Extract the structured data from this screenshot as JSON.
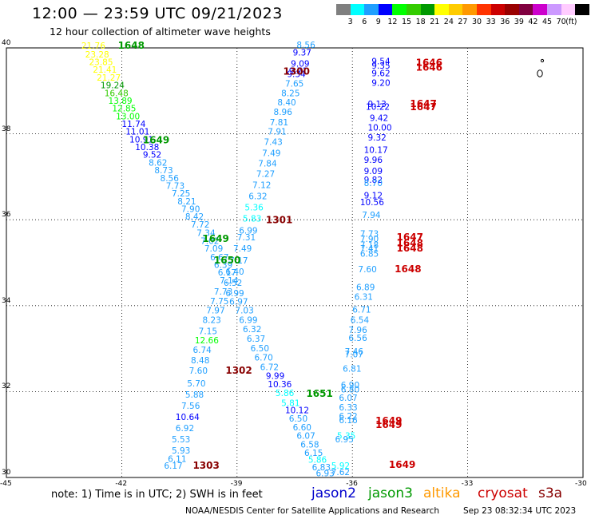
{
  "header": {
    "title": "12:00 — 23:59 UTC 09/21/2023",
    "subtitle": "12 hour collection of altimeter wave heights"
  },
  "colorbar": {
    "colors": [
      "#7f7f7f",
      "#00ffff",
      "#1f9fff",
      "#0000ff",
      "#00ff00",
      "#33cc00",
      "#009900",
      "#ffff00",
      "#ffcc00",
      "#ff9900",
      "#ff3300",
      "#cc0000",
      "#990000",
      "#800040",
      "#cc00cc",
      "#cc99ff",
      "#ffccff",
      "#000000"
    ],
    "labels": [
      "3",
      "6",
      "9",
      "12",
      "15",
      "18",
      "21",
      "24",
      "27",
      "30",
      "33",
      "36",
      "39",
      "42",
      "45",
      "70",
      "(ft)"
    ]
  },
  "axes": {
    "x_ticks": [
      "-45",
      "-42",
      "-39",
      "-36",
      "-33",
      "-30"
    ],
    "y_ticks": [
      "40",
      "38",
      "36",
      "34",
      "32",
      "30"
    ]
  },
  "legend": {
    "note": "note:  1) Time is in UTC;  2) SWH is in feet",
    "satellites": [
      {
        "name": "jason2",
        "color": "#0000cc"
      },
      {
        "name": "jason3",
        "color": "#009900"
      },
      {
        "name": "altika",
        "color": "#ff9900"
      },
      {
        "name": "cryosat",
        "color": "#cc0000"
      },
      {
        "name": "s3a",
        "color": "#880000"
      }
    ]
  },
  "footer": {
    "source": "NOAA/NESDIS Center for Satellite Applications and Research",
    "timestamp": "Sep 23 08:32:34 UTC 2023"
  },
  "time_labels": [
    {
      "text": "1648",
      "lon": -42.1,
      "lat": 39.98,
      "color": "#009900"
    },
    {
      "text": "1649",
      "lon": -41.45,
      "lat": 37.78,
      "color": "#009900"
    },
    {
      "text": "1649",
      "lon": -39.9,
      "lat": 35.48,
      "color": "#009900"
    },
    {
      "text": "1650",
      "lon": -39.6,
      "lat": 34.98,
      "color": "#009900"
    },
    {
      "text": "1651",
      "lon": -37.2,
      "lat": 31.88,
      "color": "#009900"
    },
    {
      "text": "1300",
      "lon": -37.8,
      "lat": 39.38,
      "color": "#880000"
    },
    {
      "text": "1301",
      "lon": -38.25,
      "lat": 35.92,
      "color": "#880000"
    },
    {
      "text": "1302",
      "lon": -39.3,
      "lat": 32.42,
      "color": "#880000"
    },
    {
      "text": "1303",
      "lon": -40.15,
      "lat": 30.2,
      "color": "#880000"
    },
    {
      "text": "1646",
      "lon": -34.35,
      "lat": 39.58,
      "color": "#cc0000"
    },
    {
      "text": "1646",
      "lon": -34.35,
      "lat": 39.47,
      "color": "#cc0000"
    },
    {
      "text": "1647",
      "lon": -34.5,
      "lat": 38.62,
      "color": "#cc0000"
    },
    {
      "text": "1647",
      "lon": -34.5,
      "lat": 38.55,
      "color": "#cc0000"
    },
    {
      "text": "1647",
      "lon": -34.85,
      "lat": 35.52,
      "color": "#cc0000"
    },
    {
      "text": "1648",
      "lon": -34.85,
      "lat": 35.38,
      "color": "#cc0000"
    },
    {
      "text": "1648",
      "lon": -34.85,
      "lat": 35.26,
      "color": "#cc0000"
    },
    {
      "text": "1648",
      "lon": -34.9,
      "lat": 34.78,
      "color": "#cc0000"
    },
    {
      "text": "1649",
      "lon": -35.4,
      "lat": 31.25,
      "color": "#cc0000"
    },
    {
      "text": "1649",
      "lon": -35.4,
      "lat": 31.15,
      "color": "#cc0000"
    },
    {
      "text": "1649",
      "lon": -35.05,
      "lat": 30.22,
      "color": "#cc0000"
    }
  ],
  "swh_labels": [
    {
      "text": "21.76",
      "lon": -43.05,
      "lat": 39.98,
      "color": "#ffff00"
    },
    {
      "text": "23.28",
      "lon": -42.95,
      "lat": 39.78,
      "color": "#ffff00"
    },
    {
      "text": "23.85",
      "lon": -42.85,
      "lat": 39.6,
      "color": "#ffff00"
    },
    {
      "text": "21.41",
      "lon": -42.75,
      "lat": 39.42,
      "color": "#ffff00"
    },
    {
      "text": "21.27",
      "lon": -42.65,
      "lat": 39.24,
      "color": "#ffff00"
    },
    {
      "text": "19.24",
      "lon": -42.55,
      "lat": 39.06,
      "color": "#009900"
    },
    {
      "text": "16.48",
      "lon": -42.45,
      "lat": 38.88,
      "color": "#33cc00"
    },
    {
      "text": "13.89",
      "lon": -42.35,
      "lat": 38.7,
      "color": "#00ff00"
    },
    {
      "text": "12.85",
      "lon": -42.25,
      "lat": 38.52,
      "color": "#00ff00"
    },
    {
      "text": "13.00",
      "lon": -42.15,
      "lat": 38.34,
      "color": "#00ff00"
    },
    {
      "text": "11.74",
      "lon": -42.0,
      "lat": 38.16,
      "color": "#0000ff"
    },
    {
      "text": "11.01",
      "lon": -41.9,
      "lat": 37.98,
      "color": "#0000ff"
    },
    {
      "text": "10.91",
      "lon": -41.8,
      "lat": 37.8,
      "color": "#0000ff"
    },
    {
      "text": "10.38",
      "lon": -41.65,
      "lat": 37.62,
      "color": "#0000ff"
    },
    {
      "text": "9.52",
      "lon": -41.45,
      "lat": 37.44,
      "color": "#0000ff"
    },
    {
      "text": "8.62",
      "lon": -41.3,
      "lat": 37.26,
      "color": "#1f9fff"
    },
    {
      "text": "8.73",
      "lon": -41.15,
      "lat": 37.08,
      "color": "#1f9fff"
    },
    {
      "text": "8.56",
      "lon": -41.0,
      "lat": 36.9,
      "color": "#1f9fff"
    },
    {
      "text": "7.73",
      "lon": -40.85,
      "lat": 36.72,
      "color": "#1f9fff"
    },
    {
      "text": "7.25",
      "lon": -40.7,
      "lat": 36.54,
      "color": "#1f9fff"
    },
    {
      "text": "8.21",
      "lon": -40.55,
      "lat": 36.36,
      "color": "#1f9fff"
    },
    {
      "text": "7.90",
      "lon": -40.45,
      "lat": 36.18,
      "color": "#1f9fff"
    },
    {
      "text": "8.42",
      "lon": -40.35,
      "lat": 36.0,
      "color": "#1f9fff"
    },
    {
      "text": "7.72",
      "lon": -40.2,
      "lat": 35.82,
      "color": "#1f9fff"
    },
    {
      "text": "7.34",
      "lon": -40.05,
      "lat": 35.62,
      "color": "#1f9fff"
    },
    {
      "text": "7.02",
      "lon": -39.95,
      "lat": 35.44,
      "color": "#1f9fff"
    },
    {
      "text": "7.09",
      "lon": -39.85,
      "lat": 35.26,
      "color": "#1f9fff"
    },
    {
      "text": "6.67",
      "lon": -39.7,
      "lat": 35.06,
      "color": "#1f9fff"
    },
    {
      "text": "6.39",
      "lon": -39.6,
      "lat": 34.88,
      "color": "#1f9fff"
    },
    {
      "text": "6.17",
      "lon": -39.5,
      "lat": 34.7,
      "color": "#1f9fff"
    },
    {
      "text": "7.14",
      "lon": -39.45,
      "lat": 34.52,
      "color": "#1f9fff"
    },
    {
      "text": "7.73",
      "lon": -39.6,
      "lat": 34.26,
      "color": "#1f9fff"
    },
    {
      "text": "7.75",
      "lon": -39.7,
      "lat": 34.03,
      "color": "#1f9fff"
    },
    {
      "text": "7.97",
      "lon": -39.8,
      "lat": 33.82,
      "color": "#1f9fff"
    },
    {
      "text": "8.23",
      "lon": -39.9,
      "lat": 33.6,
      "color": "#1f9fff"
    },
    {
      "text": "7.15",
      "lon": -40.0,
      "lat": 33.34,
      "color": "#1f9fff"
    },
    {
      "text": "12.66",
      "lon": -40.1,
      "lat": 33.12,
      "color": "#00ff00"
    },
    {
      "text": "6.74",
      "lon": -40.15,
      "lat": 32.9,
      "color": "#1f9fff"
    },
    {
      "text": "8.48",
      "lon": -40.2,
      "lat": 32.66,
      "color": "#1f9fff"
    },
    {
      "text": "7.60",
      "lon": -40.25,
      "lat": 32.42,
      "color": "#1f9fff"
    },
    {
      "text": "5.70",
      "lon": -40.3,
      "lat": 32.12,
      "color": "#1f9fff"
    },
    {
      "text": "5.88",
      "lon": -40.35,
      "lat": 31.86,
      "color": "#1f9fff"
    },
    {
      "text": "7.56",
      "lon": -40.45,
      "lat": 31.6,
      "color": "#1f9fff"
    },
    {
      "text": "10.64",
      "lon": -40.6,
      "lat": 31.34,
      "color": "#0000ff"
    },
    {
      "text": "6.92",
      "lon": -40.6,
      "lat": 31.08,
      "color": "#1f9fff"
    },
    {
      "text": "5.53",
      "lon": -40.7,
      "lat": 30.82,
      "color": "#1f9fff"
    },
    {
      "text": "5.93",
      "lon": -40.7,
      "lat": 30.56,
      "color": "#1f9fff"
    },
    {
      "text": "6.11",
      "lon": -40.8,
      "lat": 30.36,
      "color": "#1f9fff"
    },
    {
      "text": "6.17",
      "lon": -40.9,
      "lat": 30.2,
      "color": "#1f9fff"
    },
    {
      "text": "8.56",
      "lon": -37.45,
      "lat": 40.0,
      "color": "#1f9fff"
    },
    {
      "text": "9.37",
      "lon": -37.55,
      "lat": 39.82,
      "color": "#0000ff"
    },
    {
      "text": "9.09",
      "lon": -37.6,
      "lat": 39.56,
      "color": "#0000ff"
    },
    {
      "text": "9.71",
      "lon": -37.65,
      "lat": 39.4,
      "color": "#0000ff"
    },
    {
      "text": "9.34",
      "lon": -37.7,
      "lat": 39.32,
      "color": "#0000ff"
    },
    {
      "text": "7.65",
      "lon": -37.75,
      "lat": 39.1,
      "color": "#1f9fff"
    },
    {
      "text": "8.25",
      "lon": -37.85,
      "lat": 38.88,
      "color": "#1f9fff"
    },
    {
      "text": "8.40",
      "lon": -37.95,
      "lat": 38.66,
      "color": "#1f9fff"
    },
    {
      "text": "8.96",
      "lon": -38.05,
      "lat": 38.44,
      "color": "#1f9fff"
    },
    {
      "text": "7.81",
      "lon": -38.15,
      "lat": 38.2,
      "color": "#1f9fff"
    },
    {
      "text": "7.91",
      "lon": -38.2,
      "lat": 37.98,
      "color": "#1f9fff"
    },
    {
      "text": "7.43",
      "lon": -38.3,
      "lat": 37.74,
      "color": "#1f9fff"
    },
    {
      "text": "7.49",
      "lon": -38.35,
      "lat": 37.48,
      "color": "#1f9fff"
    },
    {
      "text": "7.84",
      "lon": -38.45,
      "lat": 37.24,
      "color": "#1f9fff"
    },
    {
      "text": "7.27",
      "lon": -38.5,
      "lat": 37.0,
      "color": "#1f9fff"
    },
    {
      "text": "7.12",
      "lon": -38.6,
      "lat": 36.74,
      "color": "#1f9fff"
    },
    {
      "text": "6.32",
      "lon": -38.7,
      "lat": 36.48,
      "color": "#1f9fff"
    },
    {
      "text": "5.36",
      "lon": -38.8,
      "lat": 36.22,
      "color": "#00ffff"
    },
    {
      "text": "5.83",
      "lon": -38.85,
      "lat": 35.96,
      "color": "#00ffff"
    },
    {
      "text": "6.99",
      "lon": -38.95,
      "lat": 35.68,
      "color": "#1f9fff"
    },
    {
      "text": "7.31",
      "lon": -39.0,
      "lat": 35.52,
      "color": "#1f9fff"
    },
    {
      "text": "7.49",
      "lon": -39.1,
      "lat": 35.26,
      "color": "#1f9fff"
    },
    {
      "text": "7.17",
      "lon": -39.2,
      "lat": 34.98,
      "color": "#1f9fff"
    },
    {
      "text": "6.40",
      "lon": -39.3,
      "lat": 34.72,
      "color": "#1f9fff"
    },
    {
      "text": "6.52",
      "lon": -39.35,
      "lat": 34.46,
      "color": "#1f9fff"
    },
    {
      "text": "6.99",
      "lon": -39.3,
      "lat": 34.22,
      "color": "#1f9fff"
    },
    {
      "text": "6.97",
      "lon": -39.2,
      "lat": 34.02,
      "color": "#1f9fff"
    },
    {
      "text": "7.03",
      "lon": -39.05,
      "lat": 33.82,
      "color": "#1f9fff"
    },
    {
      "text": "6.99",
      "lon": -38.95,
      "lat": 33.6,
      "color": "#1f9fff"
    },
    {
      "text": "6.32",
      "lon": -38.85,
      "lat": 33.38,
      "color": "#1f9fff"
    },
    {
      "text": "6.37",
      "lon": -38.75,
      "lat": 33.16,
      "color": "#1f9fff"
    },
    {
      "text": "6.50",
      "lon": -38.65,
      "lat": 32.94,
      "color": "#1f9fff"
    },
    {
      "text": "6.70",
      "lon": -38.55,
      "lat": 32.72,
      "color": "#1f9fff"
    },
    {
      "text": "6.72",
      "lon": -38.4,
      "lat": 32.5,
      "color": "#1f9fff"
    },
    {
      "text": "9.99",
      "lon": -38.25,
      "lat": 32.3,
      "color": "#0000ff"
    },
    {
      "text": "10.36",
      "lon": -38.2,
      "lat": 32.1,
      "color": "#0000ff"
    },
    {
      "text": "5.86",
      "lon": -38.0,
      "lat": 31.9,
      "color": "#00ffff"
    },
    {
      "text": "5.81",
      "lon": -37.85,
      "lat": 31.66,
      "color": "#00ffff"
    },
    {
      "text": "10.12",
      "lon": -37.75,
      "lat": 31.5,
      "color": "#0000ff"
    },
    {
      "text": "6.50",
      "lon": -37.65,
      "lat": 31.3,
      "color": "#1f9fff"
    },
    {
      "text": "6.60",
      "lon": -37.55,
      "lat": 31.1,
      "color": "#1f9fff"
    },
    {
      "text": "6.07",
      "lon": -37.45,
      "lat": 30.9,
      "color": "#1f9fff"
    },
    {
      "text": "6.58",
      "lon": -37.35,
      "lat": 30.7,
      "color": "#1f9fff"
    },
    {
      "text": "6.15",
      "lon": -37.25,
      "lat": 30.5,
      "color": "#1f9fff"
    },
    {
      "text": "5.86",
      "lon": -37.15,
      "lat": 30.34,
      "color": "#00ffff"
    },
    {
      "text": "6.83",
      "lon": -37.05,
      "lat": 30.17,
      "color": "#1f9fff"
    },
    {
      "text": "6.93",
      "lon": -36.95,
      "lat": 30.03,
      "color": "#1f9fff"
    },
    {
      "text": "9.54",
      "lon": -35.5,
      "lat": 39.62,
      "color": "#0000ff"
    },
    {
      "text": "9.35",
      "lon": -35.5,
      "lat": 39.52,
      "color": "#0000ff"
    },
    {
      "text": "9.62",
      "lon": -35.5,
      "lat": 39.34,
      "color": "#0000ff"
    },
    {
      "text": "9.20",
      "lon": -35.5,
      "lat": 39.12,
      "color": "#0000ff"
    },
    {
      "text": "9.13",
      "lon": -35.6,
      "lat": 38.62,
      "color": "#0000ff"
    },
    {
      "text": "10.22",
      "lon": -35.65,
      "lat": 38.56,
      "color": "#0000ff"
    },
    {
      "text": "9.42",
      "lon": -35.55,
      "lat": 38.3,
      "color": "#0000ff"
    },
    {
      "text": "10.00",
      "lon": -35.6,
      "lat": 38.08,
      "color": "#0000ff"
    },
    {
      "text": "9.32",
      "lon": -35.6,
      "lat": 37.84,
      "color": "#0000ff"
    },
    {
      "text": "10.17",
      "lon": -35.7,
      "lat": 37.56,
      "color": "#0000ff"
    },
    {
      "text": "9.96",
      "lon": -35.7,
      "lat": 37.32,
      "color": "#0000ff"
    },
    {
      "text": "9.09",
      "lon": -35.7,
      "lat": 37.06,
      "color": "#0000ff"
    },
    {
      "text": "9.82",
      "lon": -35.7,
      "lat": 36.86,
      "color": "#0000ff"
    },
    {
      "text": "8.70",
      "lon": -35.7,
      "lat": 36.78,
      "color": "#1f9fff"
    },
    {
      "text": "9.12",
      "lon": -35.7,
      "lat": 36.5,
      "color": "#0000ff"
    },
    {
      "text": "10.56",
      "lon": -35.8,
      "lat": 36.34,
      "color": "#0000ff"
    },
    {
      "text": "7.94",
      "lon": -35.75,
      "lat": 36.04,
      "color": "#1f9fff"
    },
    {
      "text": "7.73",
      "lon": -35.8,
      "lat": 35.6,
      "color": "#1f9fff"
    },
    {
      "text": "7.90",
      "lon": -35.8,
      "lat": 35.48,
      "color": "#1f9fff"
    },
    {
      "text": "7.18",
      "lon": -35.8,
      "lat": 35.34,
      "color": "#1f9fff"
    },
    {
      "text": "7.41",
      "lon": -35.8,
      "lat": 35.26,
      "color": "#1f9fff"
    },
    {
      "text": "6.85",
      "lon": -35.8,
      "lat": 35.14,
      "color": "#1f9fff"
    },
    {
      "text": "7.60",
      "lon": -35.85,
      "lat": 34.78,
      "color": "#1f9fff"
    },
    {
      "text": "6.89",
      "lon": -35.9,
      "lat": 34.36,
      "color": "#1f9fff"
    },
    {
      "text": "6.31",
      "lon": -35.95,
      "lat": 34.14,
      "color": "#1f9fff"
    },
    {
      "text": "6.71",
      "lon": -36.0,
      "lat": 33.84,
      "color": "#1f9fff"
    },
    {
      "text": "6.54",
      "lon": -36.05,
      "lat": 33.6,
      "color": "#1f9fff"
    },
    {
      "text": "7.96",
      "lon": -36.1,
      "lat": 33.36,
      "color": "#1f9fff"
    },
    {
      "text": "6.56",
      "lon": -36.1,
      "lat": 33.18,
      "color": "#1f9fff"
    },
    {
      "text": "7.46",
      "lon": -36.2,
      "lat": 32.86,
      "color": "#1f9fff"
    },
    {
      "text": "7.07",
      "lon": -36.2,
      "lat": 32.8,
      "color": "#1f9fff"
    },
    {
      "text": "6.81",
      "lon": -36.25,
      "lat": 32.46,
      "color": "#1f9fff"
    },
    {
      "text": "6.90",
      "lon": -36.3,
      "lat": 32.08,
      "color": "#1f9fff"
    },
    {
      "text": "6.80",
      "lon": -36.3,
      "lat": 31.98,
      "color": "#1f9fff"
    },
    {
      "text": "6.07",
      "lon": -36.35,
      "lat": 31.78,
      "color": "#1f9fff"
    },
    {
      "text": "6.33",
      "lon": -36.35,
      "lat": 31.56,
      "color": "#1f9fff"
    },
    {
      "text": "6.22",
      "lon": -36.35,
      "lat": 31.36,
      "color": "#1f9fff"
    },
    {
      "text": "6.16",
      "lon": -36.35,
      "lat": 31.26,
      "color": "#1f9fff"
    },
    {
      "text": "5.35",
      "lon": -36.4,
      "lat": 30.9,
      "color": "#00ffff"
    },
    {
      "text": "6.95",
      "lon": -36.45,
      "lat": 30.82,
      "color": "#1f9fff"
    },
    {
      "text": "5.92",
      "lon": -36.55,
      "lat": 30.2,
      "color": "#00ffff"
    },
    {
      "text": "7.62",
      "lon": -36.55,
      "lat": 30.06,
      "color": "#1f9fff"
    }
  ]
}
